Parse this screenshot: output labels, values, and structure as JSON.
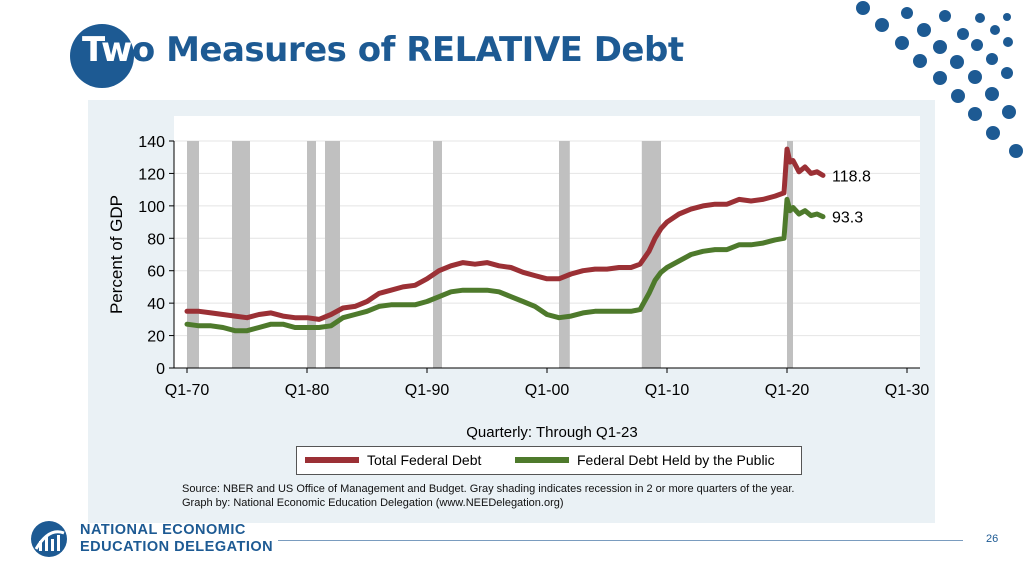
{
  "slide": {
    "title_prefix": "Tw",
    "title_rest": "o Measures of RELATIVE Debt",
    "page_number": "26",
    "org_line1": "NATIONAL ECONOMIC",
    "org_line2": "EDUCATION DELEGATION"
  },
  "colors": {
    "brand_blue": "#1d5a93",
    "total_debt": "#9b3035",
    "public_debt": "#4e7a2c",
    "recession": "#c0c0c0"
  },
  "source": {
    "line1": "Source: NBER and US Office of Management and Budget. Gray shading indicates recession in 2 or more quarters of the year.",
    "line2": "Graph by: National Economic Education Delegation (www.NEEDelegation.org)"
  },
  "chart_data": {
    "type": "line",
    "title": "",
    "xlabel": "Quarterly: Through Q1-23",
    "ylabel": "Percent of GDP",
    "xlim": [
      1970,
      2030
    ],
    "ylim": [
      0,
      140
    ],
    "x_ticks": [
      1970,
      1980,
      1990,
      2000,
      2010,
      2020,
      2030
    ],
    "x_tick_labels": [
      "Q1-70",
      "Q1-80",
      "Q1-90",
      "Q1-00",
      "Q1-10",
      "Q1-20",
      "Q1-30"
    ],
    "y_ticks": [
      0,
      20,
      40,
      60,
      80,
      100,
      120,
      140
    ],
    "y_tick_labels": [
      "0",
      "20",
      "40",
      "60",
      "80",
      "100",
      "120",
      "140"
    ],
    "grid": true,
    "legend_position": "bottom",
    "recession_shading": [
      [
        1970.0,
        1971.0
      ],
      [
        1973.75,
        1975.25
      ],
      [
        1980.0,
        1980.75
      ],
      [
        1981.5,
        1982.75
      ],
      [
        1990.5,
        1991.25
      ],
      [
        2001.0,
        2001.9
      ],
      [
        2007.9,
        2009.5
      ],
      [
        2020.0,
        2020.5
      ]
    ],
    "series": [
      {
        "name": "Total Federal Debt",
        "end_label": "118.8",
        "x": [
          1970,
          1971,
          1972,
          1973,
          1974,
          1975,
          1976,
          1977,
          1978,
          1979,
          1980,
          1981,
          1982,
          1983,
          1984,
          1985,
          1986,
          1987,
          1988,
          1989,
          1990,
          1991,
          1992,
          1993,
          1994,
          1995,
          1996,
          1997,
          1998,
          1999,
          2000,
          2001,
          2002,
          2003,
          2004,
          2005,
          2006,
          2007,
          2007.75,
          2008.5,
          2009,
          2009.5,
          2010,
          2011,
          2012,
          2013,
          2014,
          2015,
          2016,
          2017,
          2018,
          2019,
          2019.75,
          2020,
          2020.25,
          2020.5,
          2021,
          2021.5,
          2022,
          2022.5,
          2023
        ],
        "values": [
          35,
          35,
          34,
          33,
          32,
          31,
          33,
          34,
          32,
          31,
          31,
          30,
          33,
          37,
          38,
          41,
          46,
          48,
          50,
          51,
          55,
          60,
          63,
          65,
          64,
          65,
          63,
          62,
          59,
          57,
          55,
          55,
          58,
          60,
          61,
          61,
          62,
          62,
          64,
          72,
          80,
          86,
          90,
          95,
          98,
          100,
          101,
          101,
          104,
          103,
          104,
          106,
          108,
          135,
          127,
          128,
          121,
          124,
          120,
          121,
          118.8
        ]
      },
      {
        "name": "Federal Debt Held by the Public",
        "end_label": "93.3",
        "x": [
          1970,
          1971,
          1972,
          1973,
          1974,
          1975,
          1976,
          1977,
          1978,
          1979,
          1980,
          1981,
          1982,
          1983,
          1984,
          1985,
          1986,
          1987,
          1988,
          1989,
          1990,
          1991,
          1992,
          1993,
          1994,
          1995,
          1996,
          1997,
          1998,
          1999,
          2000,
          2001,
          2002,
          2003,
          2004,
          2005,
          2006,
          2007,
          2007.75,
          2008.5,
          2009,
          2009.5,
          2010,
          2011,
          2012,
          2013,
          2014,
          2015,
          2016,
          2017,
          2018,
          2019,
          2019.75,
          2020,
          2020.25,
          2020.5,
          2021,
          2021.5,
          2022,
          2022.5,
          2023
        ],
        "values": [
          27,
          26,
          26,
          25,
          23,
          23,
          25,
          27,
          27,
          25,
          25,
          25,
          26,
          31,
          33,
          35,
          38,
          39,
          39,
          39,
          41,
          44,
          47,
          48,
          48,
          48,
          47,
          44,
          41,
          38,
          33,
          31,
          32,
          34,
          35,
          35,
          35,
          35,
          36,
          46,
          54,
          59,
          62,
          66,
          70,
          72,
          73,
          73,
          76,
          76,
          77,
          79,
          80,
          104,
          97,
          99,
          95,
          97,
          94,
          95,
          93.3
        ]
      }
    ]
  }
}
